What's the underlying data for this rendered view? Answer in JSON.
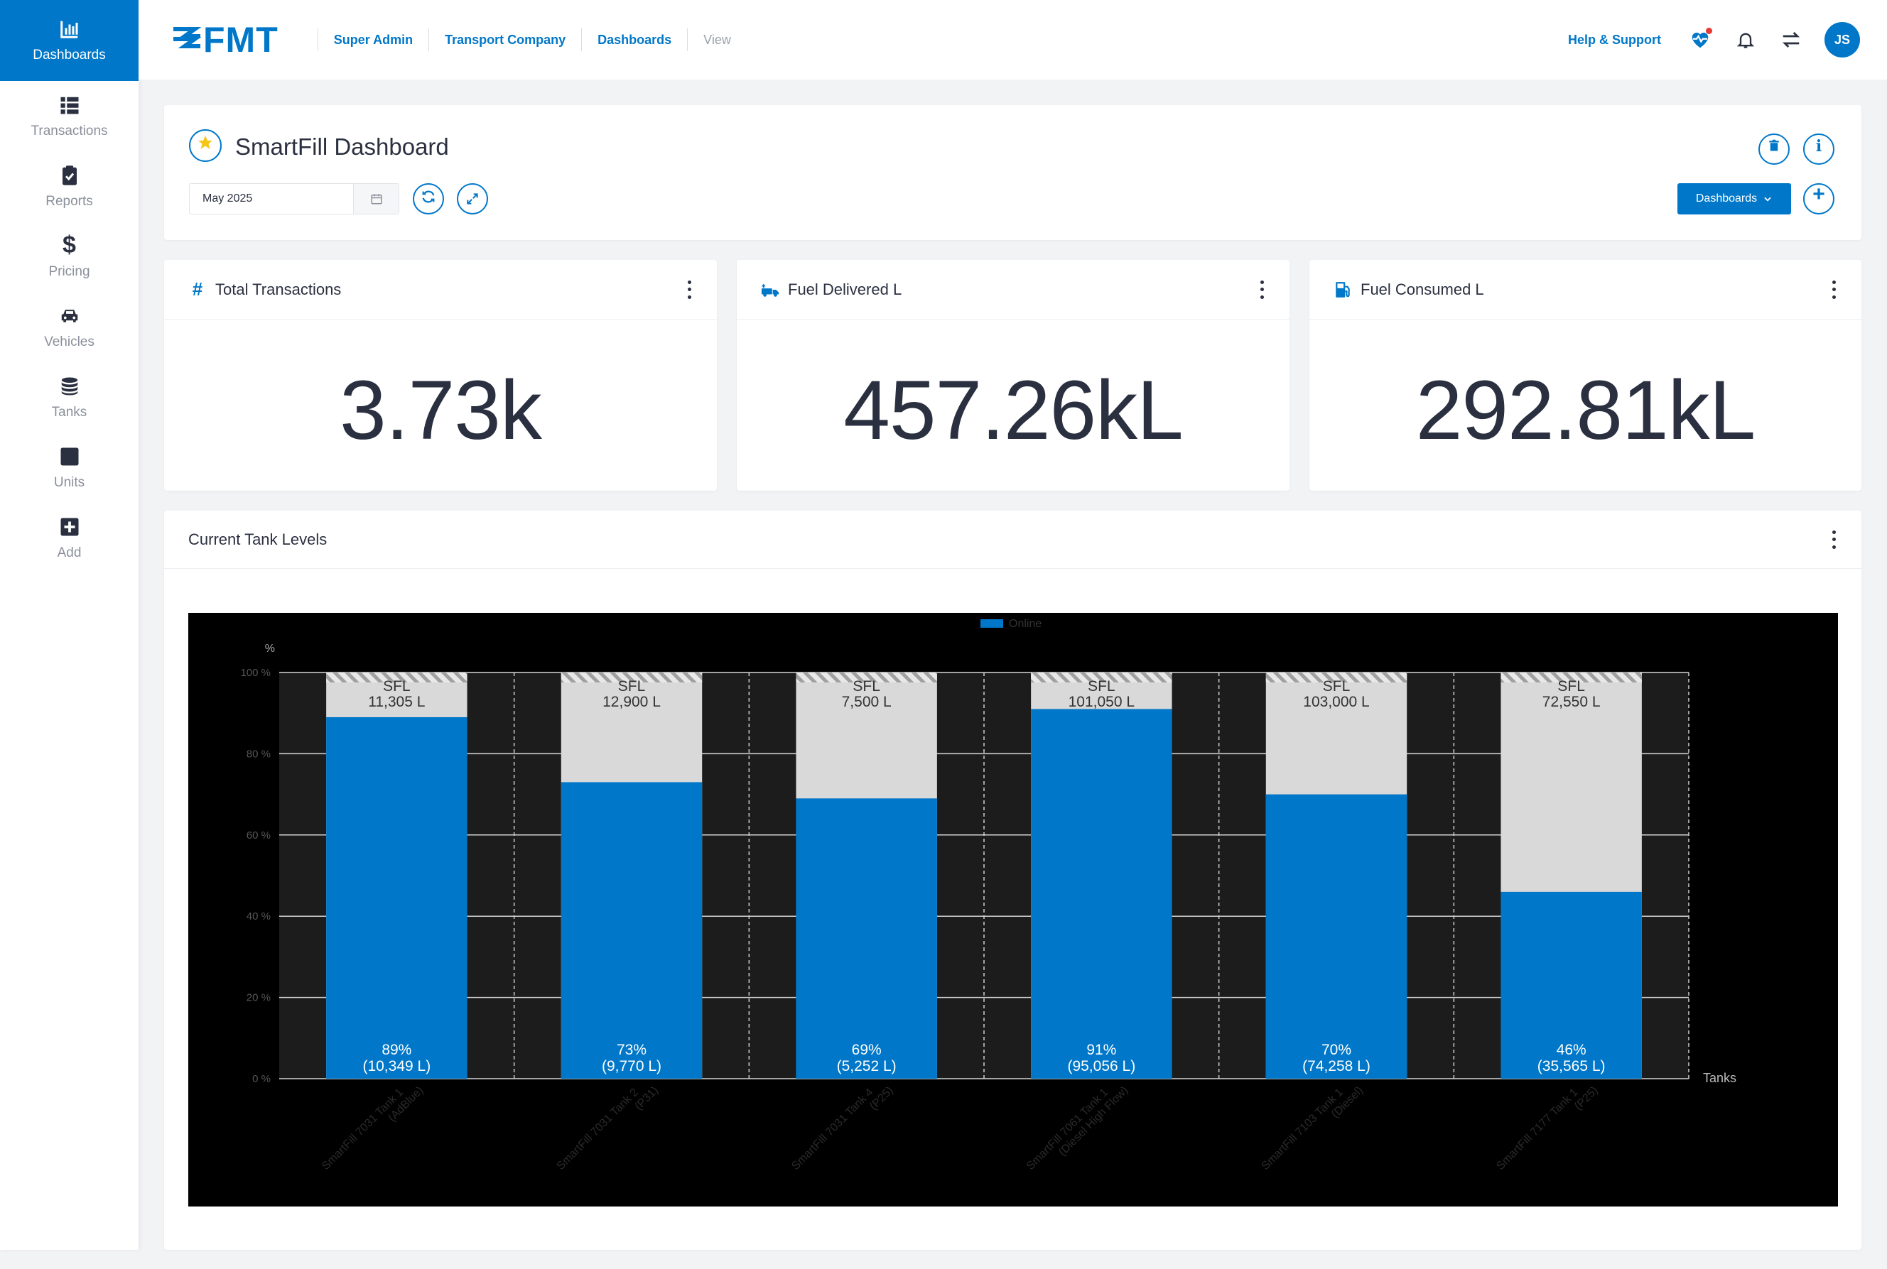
{
  "sidebar": {
    "items": [
      {
        "label": "Dashboards",
        "icon": "bar-chart-icon"
      },
      {
        "label": "Transactions",
        "icon": "list-icon"
      },
      {
        "label": "Reports",
        "icon": "clipboard-check-icon"
      },
      {
        "label": "Pricing",
        "icon": "dollar-icon"
      },
      {
        "label": "Vehicles",
        "icon": "car-icon"
      },
      {
        "label": "Tanks",
        "icon": "database-icon"
      },
      {
        "label": "Units",
        "icon": "square-icon"
      },
      {
        "label": "Add",
        "icon": "plus-square-icon"
      }
    ]
  },
  "topbar": {
    "logo": "FMT",
    "breadcrumbs": [
      "Super Admin",
      "Transport Company",
      "Dashboards",
      "View"
    ],
    "help": "Help & Support",
    "avatar_initials": "JS"
  },
  "dashboard": {
    "title": "SmartFill Dashboard",
    "date_value": "May 2025",
    "dashboards_button": "Dashboards"
  },
  "kpis": [
    {
      "title": "Total Transactions",
      "value": "3.73k",
      "icon": "hash-icon"
    },
    {
      "title": "Fuel Delivered L",
      "value": "457.26kL",
      "icon": "fuel-truck-icon"
    },
    {
      "title": "Fuel Consumed L",
      "value": "292.81kL",
      "icon": "gas-pump-icon"
    }
  ],
  "tank_panel": {
    "title": "Current Tank Levels"
  },
  "colors": {
    "accent": "#0077c8",
    "chart_bg": "#000000",
    "capacity": "#d9d9d9"
  },
  "chart_data": {
    "type": "bar",
    "stacked": true,
    "ylabel": "%",
    "xlabel": "Tanks",
    "ylim": [
      0,
      100
    ],
    "yticks": [
      "0 %",
      "20 %",
      "40 %",
      "60 %",
      "80 %",
      "100 %"
    ],
    "legend": [
      {
        "name": "Online",
        "position": "top-center"
      }
    ],
    "categories": [
      "SmartFill 7031 Tank 1 (AdBlue)",
      "SmartFill 7031 Tank 2 (P31)",
      "SmartFill 7031 Tank 4 (P25)",
      "SmartFill 7061 Tank 1 (Diesel High Flow)",
      "SmartFill 7103 Tank 1 (Diesel)",
      "SmartFill 7177 Tank 1 (P25)"
    ],
    "category_lines": [
      [
        "SmartFill 7031 Tank 1",
        "(AdBlue)"
      ],
      [
        "SmartFill 7031 Tank 2",
        "(P31)"
      ],
      [
        "SmartFill 7031 Tank 4",
        "(P25)"
      ],
      [
        "SmartFill 7061 Tank 1",
        "(Diesel High Flow)"
      ],
      [
        "SmartFill 7103 Tank 1",
        "(Diesel)"
      ],
      [
        "SmartFill 7177 Tank 1",
        "(P25)"
      ]
    ],
    "series": [
      {
        "name": "Online",
        "values": [
          89,
          73,
          69,
          91,
          70,
          46
        ]
      }
    ],
    "level_labels": [
      [
        "89%",
        "(10,349 L)"
      ],
      [
        "73%",
        "(9,770 L)"
      ],
      [
        "69%",
        "(5,252 L)"
      ],
      [
        "91%",
        "(95,056 L)"
      ],
      [
        "70%",
        "(74,258 L)"
      ],
      [
        "46%",
        "(35,565 L)"
      ]
    ],
    "capacity_labels": [
      [
        "SFL",
        "11,305 L"
      ],
      [
        "SFL",
        "12,900 L"
      ],
      [
        "SFL",
        "7,500 L"
      ],
      [
        "SFL",
        "101,050 L"
      ],
      [
        "SFL",
        "103,000 L"
      ],
      [
        "SFL",
        "72,550 L"
      ]
    ]
  }
}
